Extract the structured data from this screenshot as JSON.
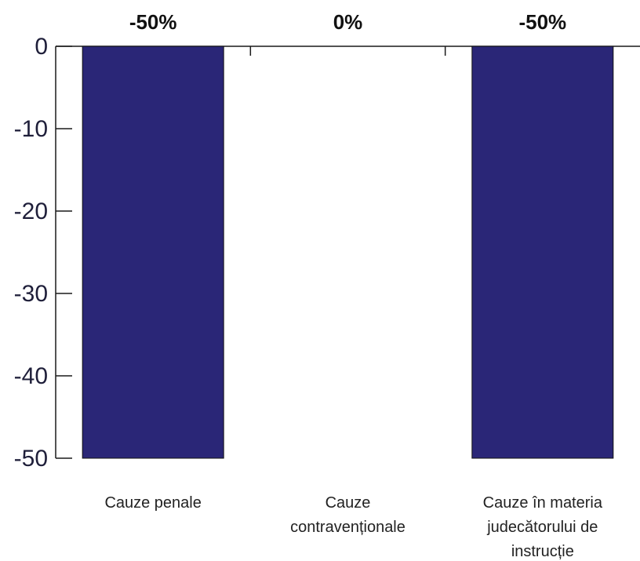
{
  "chart_data": {
    "type": "bar",
    "categories": [
      [
        "Cauze penale"
      ],
      [
        "Cauze",
        "contravenționale"
      ],
      [
        "Cauze în materia",
        "judecătorului de",
        "instrucție"
      ]
    ],
    "values": [
      -50,
      0,
      -50
    ],
    "data_labels": [
      "-50%",
      "0%",
      "-50%"
    ],
    "yticks": [
      0,
      -10,
      -20,
      -30,
      -40,
      -50
    ],
    "ylim": [
      -50,
      0
    ],
    "grid": false,
    "bar_color": "#2a2677",
    "axis_color": "#1a1a1a"
  }
}
